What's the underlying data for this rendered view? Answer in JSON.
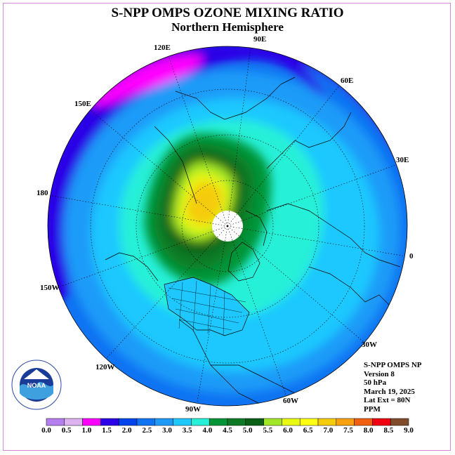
{
  "title": "S-NPP OMPS OZONE MIXING RATIO",
  "subtitle": "Northern Hemisphere",
  "longitude_labels": {
    "lon_90e": "90E",
    "lon_60e": "60E",
    "lon_30e": "30E",
    "lon_0": "0",
    "lon_30w": "30W",
    "lon_60w": "60W",
    "lon_90w": "90W",
    "lon_120w": "120W",
    "lon_150w": "150W",
    "lon_180": "180",
    "lon_150e": "150E",
    "lon_120e": "120E"
  },
  "info": {
    "line1": "S-NPP OMPS NP",
    "line2": "Version 8",
    "line3": "50 hPa",
    "line4": "March 19, 2025",
    "line5": "Lat Ext = 80N",
    "line6": "PPM"
  },
  "logo": {
    "text": "NOAA",
    "ring_text": "NATIONAL OCEANIC AND ATMOSPHERIC ADMINISTRATION · U.S. DEPARTMENT OF COMMERCE"
  },
  "colorbar": {
    "ticks": [
      "0.0",
      "0.5",
      "1.0",
      "1.5",
      "2.0",
      "2.5",
      "3.0",
      "3.5",
      "4.0",
      "4.5",
      "5.0",
      "5.5",
      "6.0",
      "6.5",
      "7.0",
      "7.5",
      "8.0",
      "8.5",
      "9.0"
    ],
    "colors": [
      "#b57ff0",
      "#dcb2f0",
      "#ff00ff",
      "#2a00e6",
      "#0044ee",
      "#0f73f2",
      "#1e9bf8",
      "#1ec8ff",
      "#28f0d8",
      "#069438",
      "#0e7a26",
      "#0a5f16",
      "#a2e628",
      "#e8fa14",
      "#ffff14",
      "#f4cc0c",
      "#f8a00e",
      "#f06010",
      "#f00010",
      "#804c2c"
    ]
  }
}
